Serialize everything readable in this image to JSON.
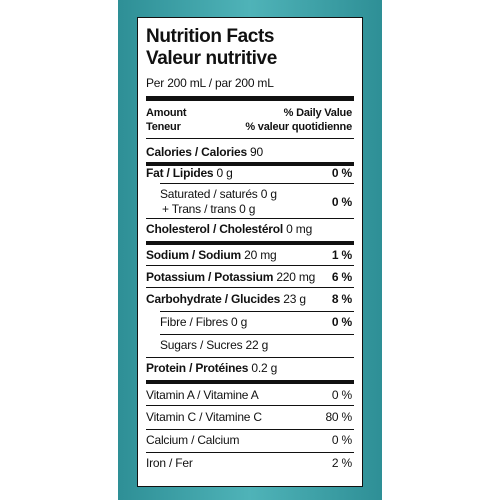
{
  "header": {
    "title": "Nutrition Facts",
    "title_fr": "Valeur nutritive",
    "serving": "Per 200 mL / par 200 mL"
  },
  "columns": {
    "amount": "Amount",
    "amount_fr": "Teneur",
    "dv": "% Daily Value",
    "dv_fr": "% valeur quotidienne"
  },
  "rows": [
    {
      "name": "Calories / Calories",
      "amount": "90"
    },
    {
      "name": "Fat / Lipides",
      "amount": "0 g",
      "dv": "0 %"
    },
    {
      "name": "Saturated / saturés",
      "amount": "0 g",
      "name2": "+ Trans / trans",
      "amount2": "0 g",
      "dv": "0 %"
    },
    {
      "name": "Cholesterol / Cholestérol",
      "amount": "0 mg"
    },
    {
      "name": "Sodium / Sodium",
      "amount": "20 mg",
      "dv": "1 %"
    },
    {
      "name": "Potassium / Potassium",
      "amount": "220 mg",
      "dv": "6 %"
    },
    {
      "name": "Carbohydrate / Glucides",
      "amount": "23 g",
      "dv": "8 %"
    },
    {
      "name": "Fibre / Fibres",
      "amount": "0 g",
      "dv": "0 %"
    },
    {
      "name": "Sugars / Sucres",
      "amount": "22 g"
    },
    {
      "name": "Protein / Protéines",
      "amount": "0.2 g"
    },
    {
      "name": "Vitamin A / Vitamine A",
      "dv": "0 %"
    },
    {
      "name": "Vitamin C / Vitamine C",
      "dv": "80 %"
    },
    {
      "name": "Calcium / Calcium",
      "dv": "0 %"
    },
    {
      "name": "Iron / Fer",
      "dv": "2 %"
    }
  ]
}
